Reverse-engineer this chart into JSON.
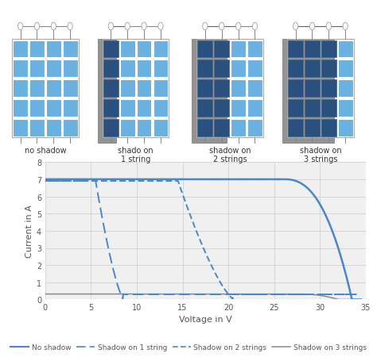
{
  "xlabel": "Voltage in V",
  "ylabel": "Current in A",
  "xlim": [
    0,
    35
  ],
  "ylim": [
    0,
    8
  ],
  "xticks": [
    0,
    5,
    10,
    15,
    20,
    25,
    30,
    35
  ],
  "yticks": [
    0,
    1,
    2,
    3,
    4,
    5,
    6,
    7,
    8
  ],
  "grid_color": "#d0d0d0",
  "plot_bg_color": "#f0f0f0",
  "legend_labels": [
    "No shadow",
    "Shadow on 1 string",
    "Shadow on 2 strings",
    "Shadow on 3 strings"
  ],
  "line_colors": [
    "#4a86c8",
    "#4a86c8",
    "#4a86c8",
    "#888888"
  ],
  "panel_labels": [
    "no shadow",
    "shado on\n1 string",
    "shadow on\n2 strings",
    "shadow on\n3 strings"
  ],
  "panel_shadow_count": [
    0,
    1,
    2,
    3
  ],
  "cell_color_light": "#6ab0e0",
  "cell_color_dark": "#2a5080",
  "shadow_bg_color": "#808080",
  "panel_border_color": "#aaaaaa",
  "wire_color_normal": "#888888",
  "wire_color_red": "#cc3333",
  "connector_color": "#cccccc"
}
